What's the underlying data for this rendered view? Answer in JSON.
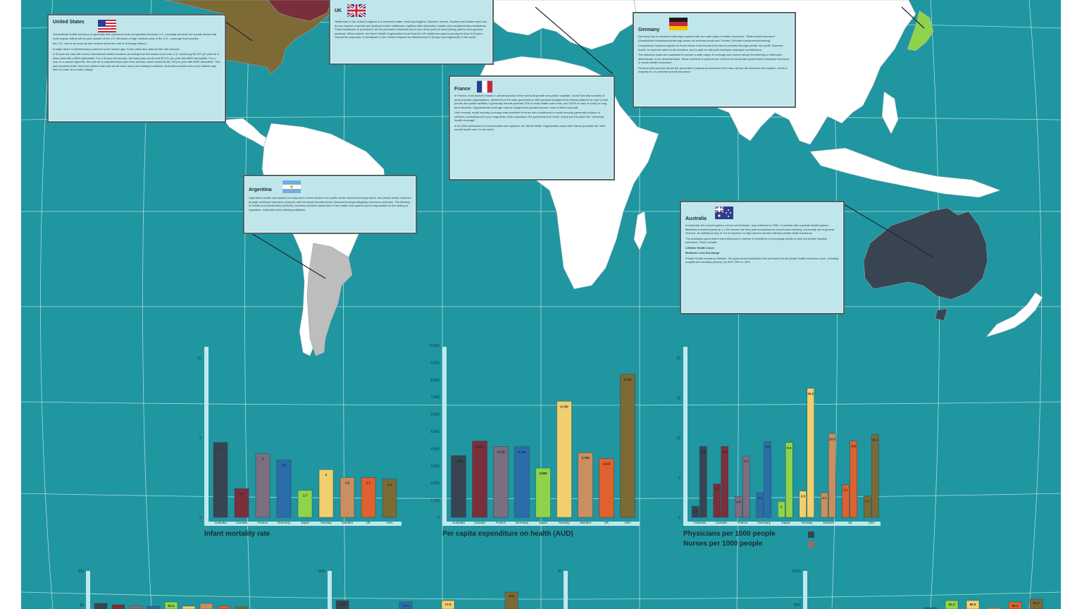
{
  "colors": {
    "ocean": "#1f96a0",
    "land": "#ffffff",
    "callout_bg": "#bfe6ea",
    "axis_bar": "#bfe8ee",
    "usa_land": "#7d6a35",
    "australia_land": "#394452",
    "argentina_land": "#bdbdbd",
    "japan_land": "#8fd34d",
    "canada_land": "#7b2f3b"
  },
  "callouts": [
    {
      "id": "usa",
      "title": "United States",
      "flag": "flag-usa-icon",
      "body": [
        "International health insurance is generally less expensive than comparable domestic U.S. coverage because the trouble knows that most regular claims will be paid outside of the U.S. Because of high medical costs in the U.S., coverage that includes",
        "the U.S. can be as much as two to three times the cost of coverage without",
        "A major factor in determining a premium is the insurer age. Some plans also take gender into account.",
        "A 35 year old man with every international health insurance providing from the lowest cost in the U.S. would pay $1,297 per year for a basic plan with a $500 deductible. For a 35 year old woman, the basic plan would cost $1,571 per year with $500 deductible. For a man or a woman aged 55, the cost for a comprehensive plan from another carrier would be $4,743 per year with $400 deductible. This plan provides fewer hours but patient care and would cover some pre-existing conditions. Both plans would cover your children age nine or under at no extra charge."
      ]
    },
    {
      "id": "uk",
      "title": "UK",
      "flag": "flag-uk-icon",
      "body": [
        "Healthcare in the United Kingdom is a devolved matter, meaning England, Northern Ireland, Scotland and Wales each has its own system of private and publicly funded healthcare, together with alternative, holistic and complementary treatments. Public healthcare is provided to all UK permanent residents and is free at the point of need (being paid for from general taxation). When ranked, the World Health Organisation found that the UK healthcare system among the best in Europe. Overall the proportion of healthcare in the United Kingdom as fifteenth best in Europe and eighteenth in the world."
      ]
    },
    {
      "id": "france",
      "title": "France",
      "flag": "flag-france-icon",
      "body": [
        "In France, most doctors remain in private practice; there are both private and public hospitals. Social Security consists of several public organisations, distinct from the state government, with separate budgets that refunds patients for care in both private and public facilities. It generally refunds patients 70% of most health care costs, and 100% in case of costly or long-term ailments. Supplemental coverage may be bought from private insurers, most of them nonprofit.",
        "Until recently, social security coverage was restricted to those who contributed to social security (generally workers or retirees), excluding some poor segments of the population; the government of Lionel Jospin put into place the \"universal health coverage\".",
        "In its 2000 assessment of world health care systems, the World Health Organization found that France provided the \"best overall health care\" in the world."
      ]
    },
    {
      "id": "germany",
      "title": "Germany",
      "flag": "flag-germany-icon",
      "body": [
        "Germany has a universal multi-payer system with two main types of health insurance: \"State health insurance\" (Gesetzliche Krankenversicherung) known as sickness funds and \"Private\" (Private Krankenversicherung).",
        "Compulsory insurance applies to those below a set income level and is provided through private non-profit \"sickness funds\" at common rates for all members, and is paid for with joint employer-employee contributions.",
        "The sickness funds are mandated to provide a wide range of coverage and cannot refuse membership or otherwise discriminate on an actuarial basis. Small numbers of persons are covered by tax-funded government employee insurance or social welfare insurance.",
        "Persons with incomes above the prescribed compulsory insurance level may opt into the sickness fund system, which a majority do, or purchase private insurance."
      ]
    },
    {
      "id": "argentina",
      "title": "Argentina",
      "flag": "flag-argentina-icon",
      "body": [
        "Argentina's health care system is composed of three sectors: the public sector, financed through taxes, the private sector, financed through voluntary insurance schemes and the social security sector, financed through obligatory insurance schemes. The Ministry of Health and Social Action (MSAS), oversees all three subsectors of the health care system and is responsible for the setting of regulation, evaluation and collecting statistics."
      ]
    },
    {
      "id": "australia",
      "title": "Australia",
      "flag": "flag-australia-icon",
      "body": [
        "In Australia, the current system, known as Medicare, was instituted in 1984. It coexists with a private health system. Medicare is funded partly by a 1.5% income tax levy (with exceptions for low-income earners), but mostly out of general revenue. An additional levy of 1% is imposed on high-income earners without private health insurance.",
        "The Australian government has introduced a number of incentives to encourage adults to take out private hospital insurance. These include:",
        "Lifetime Health Cover",
        "Medicare Levy Surcharge",
        "Private Health Insurance Rebate: The government subsidises the premiums for all private health insurance cover, including hospital and ancillary (extras), by 30%, 35% or 40%."
      ]
    }
  ],
  "chart_data": [
    {
      "type": "bar",
      "title": "Infant mortality rate",
      "categories": [
        "Australia",
        "Canada",
        "France",
        "Germany",
        "Japan",
        "Norway",
        "Sweden",
        "UK",
        "USA"
      ],
      "values": [
        4.7,
        1.8,
        4,
        3.6,
        1.7,
        3,
        2.5,
        2.5,
        2.4
      ],
      "value_labels": [
        "4.7",
        "1.8",
        "4",
        "3.6",
        "1.7",
        "3",
        "2.5",
        "2.5",
        "2.4"
      ],
      "ylim": [
        0,
        10
      ],
      "yticks": [
        "0",
        "5",
        "10"
      ],
      "bar_colors": [
        "#394452",
        "#7b2f3b",
        "#7a6e80",
        "#2b6dab",
        "#8fd34d",
        "#f1cf6f",
        "#c98f60",
        "#e1612e",
        "#7d6a35"
      ]
    },
    {
      "type": "bar",
      "title": "Per capita expenditure on health (AUD)",
      "categories": [
        "Australia",
        "Canada",
        "France",
        "Germany",
        "Japan",
        "Norway",
        "Sweden",
        "UK",
        "USA"
      ],
      "values": [
        3589,
        4433,
        4118,
        4105,
        2866,
        6750,
        3765,
        3419,
        8322
      ],
      "value_labels": [
        "3,589",
        "4,433",
        "4,118",
        "4,105",
        "2,866",
        "6,750",
        "3,765",
        "3,419",
        "8,322"
      ],
      "ylim": [
        0,
        10000
      ],
      "yticks": [
        "0",
        "1,000",
        "2,000",
        "3,000",
        "4,000",
        "5,000",
        "6,000",
        "7,000",
        "8,000",
        "9,000",
        "10,000"
      ],
      "bar_colors": [
        "#394452",
        "#7b2f3b",
        "#7a6e80",
        "#2b6dab",
        "#8fd34d",
        "#f1cf6f",
        "#c98f60",
        "#e1612e",
        "#7d6a35"
      ]
    },
    {
      "type": "bar",
      "title": "",
      "categories": [
        "Australia",
        "Canada",
        "France",
        "Germany",
        "Japan",
        "Norway",
        "Sweden",
        "UK",
        "USA"
      ],
      "series": [
        {
          "name": "Physicians per 1000 people",
          "values": [
            1.4,
            4.2,
            2.6,
            3.1,
            2.0,
            3.3,
            3.1,
            4.1,
            2.7
          ],
          "value_labels": [
            "1.4",
            "4.2",
            "2.6",
            "3.1",
            "2",
            "3.3",
            "3.1",
            "4.1",
            "2.7"
          ]
        },
        {
          "name": "Nurses per 1000 people",
          "values": [
            8.9,
            8.9,
            7.7,
            9.5,
            9.4,
            16.2,
            10.5,
            9.6,
            10.4
          ],
          "value_labels": [
            "8.9",
            "8.9",
            "7.7",
            "9.5",
            "9.4",
            "16.2",
            "10.5",
            "9.6",
            "10.4"
          ]
        }
      ],
      "ylim": [
        0,
        20
      ],
      "yticks": [
        "0",
        "5",
        "10",
        "15",
        "20"
      ],
      "bar_colors": [
        "#394452",
        "#7b2f3b",
        "#7a6e80",
        "#2b6dab",
        "#8fd34d",
        "#f1cf6f",
        "#c98f60",
        "#e1612e",
        "#7d6a35"
      ],
      "legend": {
        "placement": "bottom-left",
        "colors": [
          "#394452",
          "#9a6b6e"
        ]
      }
    }
  ],
  "partial_charts": [
    {
      "ytop": "100",
      "ymid": "80",
      "labels": [
        "",
        "",
        "",
        "",
        "81.5",
        "",
        "",
        "",
        ""
      ],
      "colors": [
        "#394452",
        "#7b2f3b",
        "#7a6e80",
        "#2b6dab",
        "#8fd34d",
        "#f1cf6f",
        "#c98f60",
        "#e1612e",
        "#7d6a35"
      ]
    },
    {
      "ytop": "20%",
      "ymid": "",
      "labels": [
        "17.7",
        "",
        "",
        "17.4",
        "",
        "17.6",
        "",
        "",
        "19.8"
      ],
      "colors": [
        "#394452",
        "#7b2f3b",
        "#7a6e80",
        "#2b6dab",
        "#8fd34d",
        "#f1cf6f",
        "#c98f60",
        "#e1612e",
        "#7d6a35"
      ]
    },
    {
      "ytop": "20",
      "ymid": "",
      "labels": [],
      "colors": []
    },
    {
      "ytop": "100%",
      "ymid": "80%",
      "labels": [
        "",
        "",
        "",
        "",
        "81.3",
        "80.5",
        "",
        "80.3",
        "81.7"
      ],
      "colors": [
        "#394452",
        "#7b2f3b",
        "#7a6e80",
        "#2b6dab",
        "#8fd34d",
        "#f1cf6f",
        "#c98f60",
        "#e1612e",
        "#7d6a35"
      ]
    }
  ]
}
